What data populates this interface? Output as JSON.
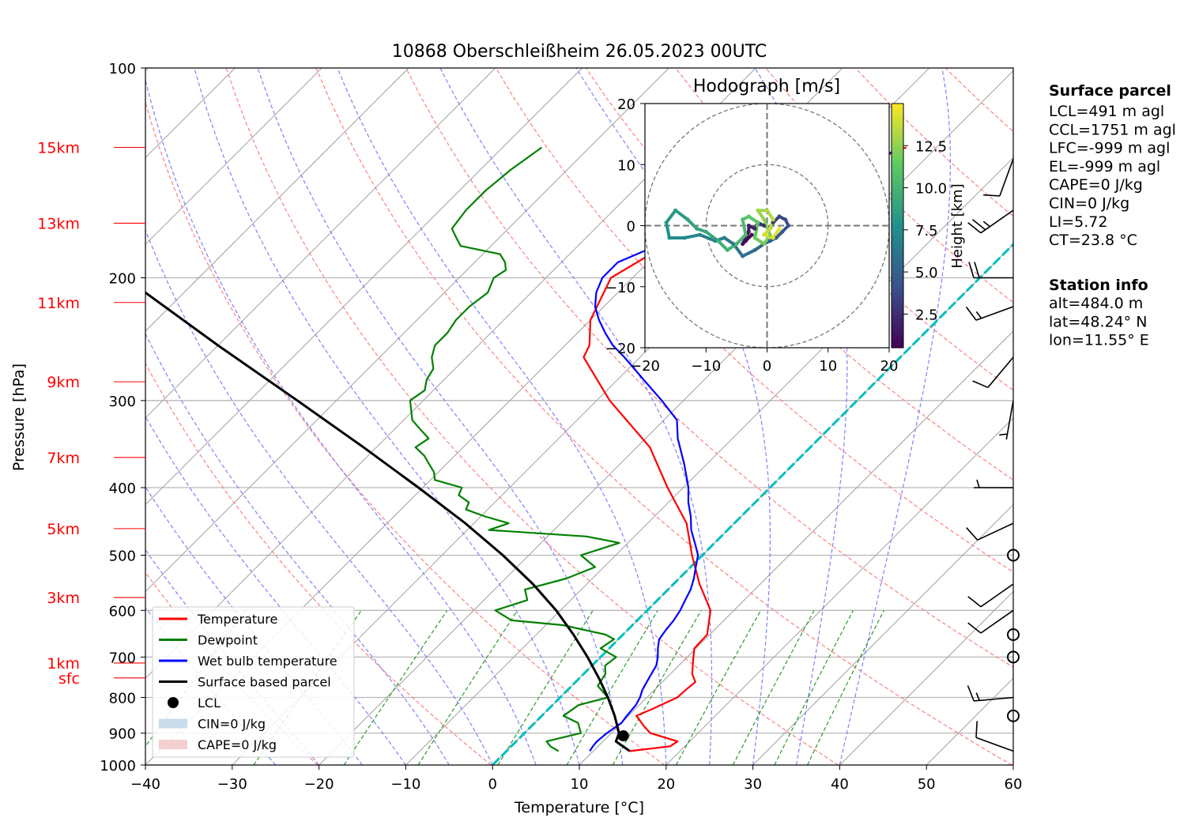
{
  "title": "10868 Oberschleißheim 26.05.2023 00UTC",
  "chart_data": [
    {
      "type": "line",
      "subtype": "skew-T log-P",
      "title": "10868 Oberschleißheim 26.05.2023 00UTC",
      "xlabel": "Temperature [°C]",
      "ylabel": "Pressure [hPa]",
      "xlim": [
        -40,
        60
      ],
      "ylim": [
        1000,
        100
      ],
      "yscale": "log",
      "grid": true,
      "x_ticks": [
        "−40",
        "−30",
        "−20",
        "−10",
        "0",
        "10",
        "20",
        "30",
        "40",
        "50",
        "60"
      ],
      "y_ticks": [
        "100",
        "200",
        "300",
        "400",
        "500",
        "600",
        "700",
        "800",
        "900",
        "1000"
      ],
      "height_labels": [
        {
          "label": "15km",
          "p": 130
        },
        {
          "label": "13km",
          "p": 167
        },
        {
          "label": "11km",
          "p": 217
        },
        {
          "label": "9km",
          "p": 282
        },
        {
          "label": "7km",
          "p": 362
        },
        {
          "label": "5km",
          "p": 458
        },
        {
          "label": "3km",
          "p": 575
        },
        {
          "label": "1km",
          "p": 714
        },
        {
          "label": "sfc",
          "p": 750
        }
      ],
      "legend_placement": "lower-left",
      "legend": [
        {
          "label": "Temperature",
          "color": "#ff0000",
          "kind": "line"
        },
        {
          "label": "Dewpoint",
          "color": "#008000",
          "kind": "line"
        },
        {
          "label": "Wet bulb temperature",
          "color": "#0000ff",
          "kind": "line"
        },
        {
          "label": "Surface based parcel",
          "color": "#000000",
          "kind": "line"
        },
        {
          "label": "LCL",
          "color": "#000000",
          "kind": "dot"
        },
        {
          "label": "CIN=0 J/kg",
          "color": "#c9dcea",
          "kind": "patch"
        },
        {
          "label": "CAPE=0 J/kg",
          "color": "#f4cfcf",
          "kind": "patch"
        }
      ],
      "series": [
        {
          "name": "Temperature",
          "color": "#ff0000",
          "p": [
            955,
            940,
            925,
            900,
            880,
            850,
            830,
            800,
            780,
            760,
            740,
            700,
            680,
            650,
            600,
            550,
            500,
            450,
            400,
            350,
            300,
            260,
            250,
            230,
            200,
            180,
            170,
            150,
            140,
            130
          ],
          "t": [
            14.2,
            18.3,
            18.6,
            14.5,
            13.0,
            10.9,
            12.0,
            13.5,
            13.6,
            13.8,
            12.5,
            10.7,
            9.8,
            9.7,
            7.3,
            3.0,
            -1.2,
            -5.5,
            -11.8,
            -18.5,
            -28.5,
            -36.5,
            -37.2,
            -40.0,
            -42.5,
            -40.0,
            -37.5,
            -30.5,
            -27.5,
            -23.5
          ]
        },
        {
          "name": "Dewpoint",
          "color": "#008000",
          "p": [
            955,
            940,
            925,
            900,
            870,
            850,
            820,
            800,
            770,
            740,
            720,
            700,
            680,
            660,
            650,
            630,
            620,
            600,
            580,
            560,
            540,
            520,
            500,
            490,
            480,
            470,
            460,
            450,
            440,
            430,
            420,
            410,
            400,
            390,
            380,
            370,
            360,
            350,
            340,
            330,
            320,
            300,
            290,
            280,
            270,
            260,
            250,
            240,
            230,
            220,
            210,
            200,
            195,
            190,
            185,
            180,
            175,
            170,
            160,
            150,
            140,
            130
          ],
          "t": [
            6.0,
            4.5,
            3.5,
            6.5,
            5.0,
            2.5,
            3.0,
            5.5,
            3.0,
            2.5,
            1.5,
            1.8,
            -1.0,
            -0.5,
            -2.0,
            -8.0,
            -14.5,
            -17.5,
            -15.0,
            -16.5,
            -13.0,
            -11.0,
            -14.0,
            -12.5,
            -11.0,
            -15.5,
            -27.5,
            -26.0,
            -29.5,
            -32.5,
            -33.0,
            -35.0,
            -35.5,
            -39.5,
            -40.5,
            -42.0,
            -43.5,
            -45.5,
            -45.0,
            -47.0,
            -49.0,
            -51.5,
            -51.0,
            -52.0,
            -52.5,
            -54.0,
            -55.0,
            -55.0,
            -55.5,
            -55.5,
            -55.0,
            -56.0,
            -55.5,
            -56.5,
            -58.0,
            -63.5,
            -65.0,
            -66.5,
            -67.0,
            -67.0,
            -66.5,
            -65.5
          ]
        },
        {
          "name": "Wet bulb temperature",
          "color": "#0000ff",
          "p": [
            955,
            940,
            925,
            900,
            870,
            850,
            820,
            800,
            780,
            750,
            720,
            700,
            680,
            660,
            640,
            620,
            600,
            580,
            560,
            540,
            520,
            500,
            480,
            460,
            440,
            420,
            400,
            370,
            340,
            320,
            300,
            280,
            260,
            250,
            240,
            230,
            220,
            210,
            200,
            190,
            180,
            170,
            160,
            150,
            140,
            130
          ],
          "t": [
            9.6,
            9.4,
            9.3,
            9.5,
            10.0,
            9.8,
            9.6,
            9.2,
            8.6,
            8.0,
            7.4,
            6.6,
            5.6,
            4.7,
            4.4,
            4.2,
            3.8,
            3.2,
            2.6,
            1.7,
            0.6,
            -0.5,
            -2.3,
            -4.2,
            -5.8,
            -7.7,
            -9.4,
            -12.6,
            -16.3,
            -18.5,
            -22.5,
            -27.0,
            -31.8,
            -34.5,
            -36.8,
            -39.0,
            -41.0,
            -42.5,
            -43.5,
            -43.5,
            -41.0,
            -37.5,
            -33.0,
            -29.0,
            -27.0,
            -24.0
          ]
        },
        {
          "name": "Surface based parcel",
          "color": "#000000",
          "p": [
            955,
            925,
            900,
            850,
            800,
            750,
            700,
            650,
            600,
            550,
            500,
            450,
            400,
            350,
            300,
            250,
            200,
            150,
            130
          ],
          "t": [
            14.2,
            11.5,
            10.9,
            8.4,
            5.5,
            2.2,
            -1.5,
            -5.7,
            -10.5,
            -16.2,
            -23.0,
            -31.0,
            -40.5,
            -51.5,
            -64.5,
            -80.0,
            -98.5,
            -121.5,
            -132.0
          ]
        }
      ],
      "lcl": {
        "p": 908,
        "t": 11.7
      },
      "reference_lines": [
        {
          "name": "isotherms",
          "color": "#a0a0a0",
          "step": 10
        },
        {
          "name": "dry adiabats",
          "color": "#ff8080"
        },
        {
          "name": "moist adiabats",
          "color": "#8080ff"
        },
        {
          "name": "mixing ratio",
          "color": "#2a9a2a"
        },
        {
          "name": "zero degree isotherm",
          "color": "#00bfbf",
          "t": 0
        }
      ]
    },
    {
      "type": "scatter",
      "subtype": "hodograph",
      "title": "Hodograph [m/s]",
      "xlim": [
        -20,
        20
      ],
      "ylim": [
        -20,
        20
      ],
      "x_ticks": [
        "−20",
        "−10",
        "0",
        "10",
        "20"
      ],
      "y_ticks": [
        "20",
        "10",
        "0",
        "−10",
        "−20"
      ],
      "rings": [
        10,
        20
      ],
      "colorbar": {
        "label": "Height [km]",
        "ticks": [
          "2.5",
          "5.0",
          "7.5",
          "10.0",
          "12.5"
        ],
        "range": [
          0.5,
          15
        ]
      },
      "points": [
        {
          "u": -2.5,
          "v": -1.5,
          "h": 0.5
        },
        {
          "u": -3.5,
          "v": -2.5,
          "h": 0.9
        },
        {
          "u": -4.0,
          "v": -3.0,
          "h": 1.2
        },
        {
          "u": -3.0,
          "v": -1.0,
          "h": 1.5
        },
        {
          "u": -3.0,
          "v": 0.0,
          "h": 1.8
        },
        {
          "u": -2.0,
          "v": -0.5,
          "h": 2.1
        },
        {
          "u": -1.5,
          "v": 0.5,
          "h": 2.4
        },
        {
          "u": -0.5,
          "v": 0.0,
          "h": 2.7
        },
        {
          "u": 0.5,
          "v": -0.5,
          "h": 3.0
        },
        {
          "u": 1.0,
          "v": 0.5,
          "h": 3.3
        },
        {
          "u": 2.0,
          "v": 1.5,
          "h": 3.6
        },
        {
          "u": 3.0,
          "v": 1.0,
          "h": 3.9
        },
        {
          "u": 3.5,
          "v": 0.0,
          "h": 4.2
        },
        {
          "u": 2.5,
          "v": -1.0,
          "h": 4.5
        },
        {
          "u": 1.5,
          "v": -2.0,
          "h": 4.8
        },
        {
          "u": 0.5,
          "v": -2.5,
          "h": 5.1
        },
        {
          "u": -0.5,
          "v": -3.0,
          "h": 5.4
        },
        {
          "u": -2.0,
          "v": -4.0,
          "h": 5.7
        },
        {
          "u": -4.0,
          "v": -5.0,
          "h": 6.0
        },
        {
          "u": -5.5,
          "v": -3.0,
          "h": 6.3
        },
        {
          "u": -7.0,
          "v": -2.0,
          "h": 6.6
        },
        {
          "u": -8.5,
          "v": -2.5,
          "h": 6.9
        },
        {
          "u": -11.0,
          "v": -1.5,
          "h": 7.2
        },
        {
          "u": -13.5,
          "v": -2.0,
          "h": 7.5
        },
        {
          "u": -16.0,
          "v": -2.0,
          "h": 7.8
        },
        {
          "u": -16.5,
          "v": 0.5,
          "h": 8.1
        },
        {
          "u": -15.0,
          "v": 2.5,
          "h": 8.4
        },
        {
          "u": -13.0,
          "v": 1.0,
          "h": 8.7
        },
        {
          "u": -11.5,
          "v": -0.5,
          "h": 9.0
        },
        {
          "u": -10.0,
          "v": -1.0,
          "h": 9.3
        },
        {
          "u": -8.0,
          "v": -2.5,
          "h": 9.6
        },
        {
          "u": -6.5,
          "v": -4.0,
          "h": 9.9
        },
        {
          "u": -5.0,
          "v": -3.0,
          "h": 10.2
        },
        {
          "u": -3.5,
          "v": -1.5,
          "h": 10.5
        },
        {
          "u": -4.0,
          "v": 1.0,
          "h": 10.8
        },
        {
          "u": -3.0,
          "v": 1.5,
          "h": 11.1
        },
        {
          "u": -1.5,
          "v": 0.5,
          "h": 11.4
        },
        {
          "u": -2.0,
          "v": -2.0,
          "h": 11.7
        },
        {
          "u": -0.5,
          "v": -3.0,
          "h": 12.0
        },
        {
          "u": 0.5,
          "v": -1.5,
          "h": 12.3
        },
        {
          "u": -0.5,
          "v": 1.0,
          "h": 12.6
        },
        {
          "u": -1.5,
          "v": 2.5,
          "h": 12.9
        },
        {
          "u": 0.0,
          "v": 2.5,
          "h": 13.2
        },
        {
          "u": 1.0,
          "v": 1.0,
          "h": 13.5
        },
        {
          "u": 0.5,
          "v": -0.5,
          "h": 13.8
        },
        {
          "u": -0.5,
          "v": -1.5,
          "h": 14.1
        },
        {
          "u": 1.0,
          "v": -2.0,
          "h": 14.4
        },
        {
          "u": 2.0,
          "v": -0.5,
          "h": 14.7
        }
      ]
    }
  ],
  "info": {
    "surface_parcel": {
      "heading": "Surface parcel",
      "lines": [
        "LCL=491 m agl",
        "CCL=1751 m agl",
        "LFC=-999 m agl",
        "EL=-999 m agl",
        "CAPE=0 J/kg",
        "CIN=0 J/kg",
        "LI=5.72",
        "CT=23.8 °C"
      ]
    },
    "station_info": {
      "heading": "Station info",
      "lines": [
        "alt=484.0 m",
        "lat=48.24° N",
        "lon=11.55° E"
      ]
    }
  },
  "wind_barbs": [
    {
      "p": 955,
      "speed_kt": 10,
      "dir_deg": 290
    },
    {
      "p": 850,
      "speed_kt": 0,
      "dir_deg": 0
    },
    {
      "p": 800,
      "speed_kt": 15,
      "dir_deg": 265
    },
    {
      "p": 700,
      "speed_kt": 0,
      "dir_deg": 0
    },
    {
      "p": 650,
      "speed_kt": 0,
      "dir_deg": 0
    },
    {
      "p": 600,
      "speed_kt": 10,
      "dir_deg": 235
    },
    {
      "p": 550,
      "speed_kt": 10,
      "dir_deg": 235
    },
    {
      "p": 500,
      "speed_kt": 0,
      "dir_deg": 0
    },
    {
      "p": 450,
      "speed_kt": 10,
      "dir_deg": 245
    },
    {
      "p": 400,
      "speed_kt": 5,
      "dir_deg": 270
    },
    {
      "p": 300,
      "speed_kt": 5,
      "dir_deg": 190
    },
    {
      "p": 260,
      "speed_kt": 10,
      "dir_deg": 220
    },
    {
      "p": 220,
      "speed_kt": 15,
      "dir_deg": 250
    },
    {
      "p": 200,
      "speed_kt": 20,
      "dir_deg": 270
    },
    {
      "p": 160,
      "speed_kt": 25,
      "dir_deg": 235
    },
    {
      "p": 135,
      "speed_kt": 10,
      "dir_deg": 200
    }
  ]
}
